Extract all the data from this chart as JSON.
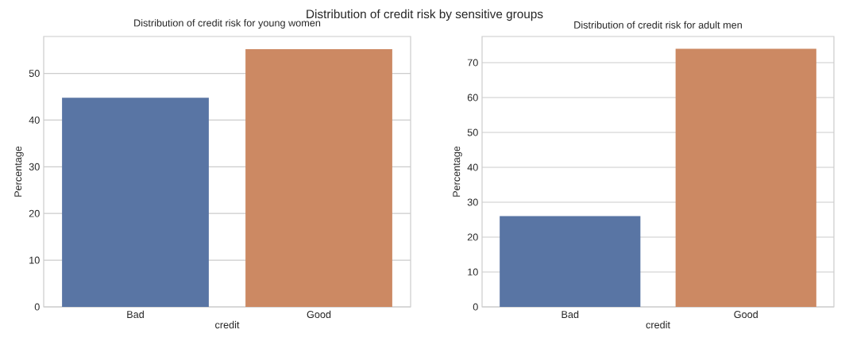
{
  "chart_data": [
    {
      "type": "bar",
      "title": "Distribution of credit risk for young women",
      "xlabel": "credit",
      "ylabel": "Percentage",
      "categories": [
        "Bad",
        "Good"
      ],
      "values": [
        44.8,
        55.2
      ],
      "colors": [
        "#5975a4",
        "#cc8963"
      ],
      "ylim": [
        0,
        57.9
      ],
      "yticks": [
        0,
        10,
        20,
        30,
        40,
        50
      ],
      "grid": "y",
      "annotations": [
        "Distribution of credit risk by sensitive groups"
      ]
    },
    {
      "type": "bar",
      "title": "Distribution of credit risk for adult men",
      "xlabel": "credit",
      "ylabel": "Percentage",
      "categories": [
        "Bad",
        "Good"
      ],
      "values": [
        26.0,
        74.0
      ],
      "colors": [
        "#5975a4",
        "#cc8963"
      ],
      "ylim": [
        0,
        77.5
      ],
      "yticks": [
        0,
        10,
        20,
        30,
        40,
        50,
        60,
        70
      ],
      "grid": "y"
    }
  ]
}
